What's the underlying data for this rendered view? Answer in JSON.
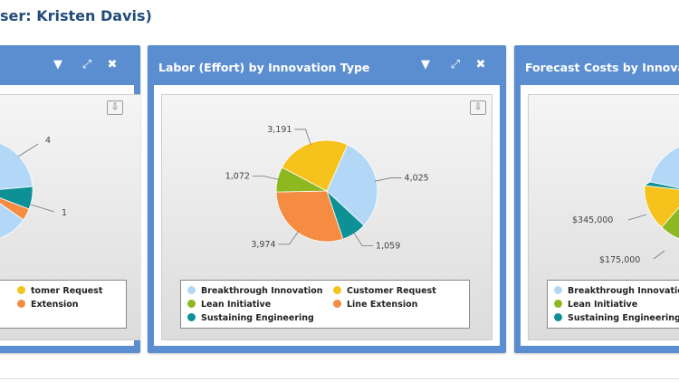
{
  "page": {
    "title": "ser: Kristen Davis)"
  },
  "colors": {
    "panel_header": "#5b8ed0",
    "breakthrough_innovation": "#b3d8f7",
    "customer_request": "#f5c31c",
    "lean_initiative": "#8db81f",
    "line_extension": "#f58c42",
    "sustaining_engineering": "#0e9196"
  },
  "panels": [
    {
      "title": "",
      "icons": [
        "chevron-down-icon",
        "expand-icon",
        "close-icon"
      ],
      "legend": [
        {
          "label": "Customer Request",
          "visible": "tomer Request",
          "color": "#f5c31c"
        },
        {
          "label": "Line Extension",
          "visible": "Extension",
          "color": "#f58c42"
        }
      ],
      "chart_data": {
        "type": "pie",
        "labels": [
          "4",
          "1"
        ]
      }
    },
    {
      "title": "Labor (Effort) by Innovation Type",
      "icons": [
        "chevron-down-icon",
        "expand-icon",
        "close-icon"
      ],
      "legend": [
        {
          "label": "Breakthrough Innovation",
          "color": "#b3d8f7"
        },
        {
          "label": "Customer Request",
          "color": "#f5c31c"
        },
        {
          "label": "Lean Initiative",
          "color": "#8db81f"
        },
        {
          "label": "Line Extension",
          "color": "#f58c42"
        },
        {
          "label": "Sustaining Engineering",
          "color": "#0e9196"
        }
      ],
      "chart_data": {
        "type": "pie",
        "categories": [
          "Breakthrough Innovation",
          "Sustaining Engineering",
          "Line Extension",
          "Lean Initiative",
          "Customer Request"
        ],
        "values": [
          4025,
          1059,
          3974,
          1072,
          3191
        ],
        "labels": [
          "4,025",
          "1,059",
          "3,974",
          "1,072",
          "3,191"
        ],
        "colors": [
          "#b3d8f7",
          "#0e9196",
          "#f58c42",
          "#8db81f",
          "#f5c31c"
        ]
      }
    },
    {
      "title": "Forecast Costs by Innovati",
      "icons": [],
      "legend": [
        {
          "label": "Breakthrough Innovatio",
          "color": "#b3d8f7"
        },
        {
          "label": "Lean Initiative",
          "color": "#8db81f"
        },
        {
          "label": "Sustaining Engineering",
          "color": "#0e9196"
        }
      ],
      "chart_data": {
        "type": "pie",
        "labels": [
          "$345,000",
          "$175,000"
        ]
      }
    }
  ]
}
